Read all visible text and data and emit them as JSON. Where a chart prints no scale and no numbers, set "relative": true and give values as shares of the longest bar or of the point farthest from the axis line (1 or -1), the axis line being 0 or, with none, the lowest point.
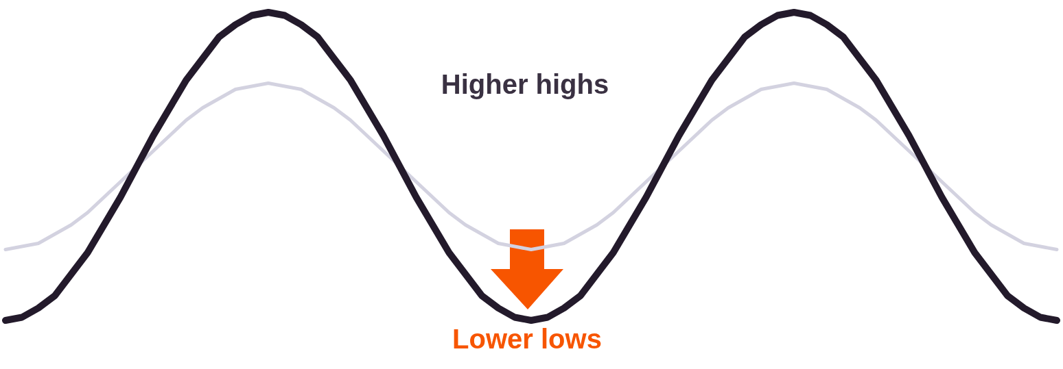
{
  "chart_data": {
    "type": "line",
    "relative": true,
    "categories": [
      null,
      null,
      null,
      null,
      null,
      null,
      null,
      null,
      null,
      null,
      null,
      null,
      null,
      null,
      null,
      null,
      null,
      null,
      null,
      null,
      null,
      null,
      null,
      null,
      null,
      null,
      null,
      null,
      null,
      null,
      null,
      null,
      null,
      null,
      null,
      null,
      null,
      null,
      null,
      null,
      null,
      null,
      null,
      null,
      null,
      null,
      null,
      null,
      null,
      null,
      null,
      null,
      null,
      null,
      null,
      null,
      null,
      null,
      null,
      null,
      null,
      null,
      null,
      null,
      null
    ],
    "series": [
      {
        "color": "#d3d2e0",
        "values": [
          0.23,
          0.24,
          0.25,
          0.28,
          0.31,
          0.35,
          0.4,
          0.45,
          0.5,
          0.55,
          0.6,
          0.65,
          0.69,
          0.72,
          0.75,
          0.76,
          0.77,
          0.76,
          0.75,
          0.72,
          0.69,
          0.65,
          0.6,
          0.55,
          0.5,
          0.45,
          0.4,
          0.35,
          0.31,
          0.28,
          0.25,
          0.24,
          0.23,
          0.24,
          0.25,
          0.28,
          0.31,
          0.35,
          0.4,
          0.45,
          0.5,
          0.55,
          0.6,
          0.65,
          0.69,
          0.72,
          0.75,
          0.76,
          0.77,
          0.76,
          0.75,
          0.72,
          0.69,
          0.65,
          0.6,
          0.55,
          0.5,
          0.45,
          0.4,
          0.35,
          0.31,
          0.28,
          0.25,
          0.24,
          0.23
        ]
      },
      {
        "color": "#231a2b",
        "values": [
          0,
          0.01,
          0.04,
          0.08,
          0.15,
          0.22,
          0.31,
          0.4,
          0.5,
          0.6,
          0.69,
          0.78,
          0.85,
          0.92,
          0.96,
          0.99,
          1,
          0.99,
          0.96,
          0.92,
          0.85,
          0.78,
          0.69,
          0.6,
          0.5,
          0.4,
          0.31,
          0.22,
          0.15,
          0.08,
          0.04,
          0.01,
          0,
          0.01,
          0.04,
          0.08,
          0.15,
          0.22,
          0.31,
          0.4,
          0.5,
          0.6,
          0.69,
          0.78,
          0.85,
          0.92,
          0.96,
          0.99,
          1,
          0.99,
          0.96,
          0.92,
          0.85,
          0.78,
          0.69,
          0.6,
          0.5,
          0.4,
          0.31,
          0.22,
          0.15,
          0.08,
          0.04,
          0.01,
          0
        ]
      }
    ],
    "annotations": [
      "Higher highs",
      "Lower lows"
    ]
  }
}
